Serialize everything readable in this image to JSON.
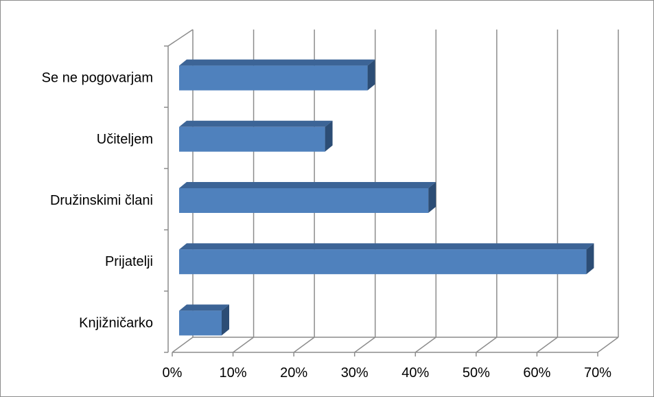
{
  "chart_data": {
    "type": "bar",
    "orientation": "horizontal",
    "style": "3d-clustered",
    "categories": [
      "Se ne pogovarjam",
      "Učiteljem",
      "Družinskimi člani",
      "Prijatelji",
      "Knjižničarko"
    ],
    "values": [
      0.31,
      0.24,
      0.41,
      0.67,
      0.07
    ],
    "x_ticks": [
      "0%",
      "10%",
      "20%",
      "30%",
      "40%",
      "50%",
      "60%",
      "70%"
    ],
    "xlim": [
      0,
      0.7
    ],
    "grid": true,
    "legend": "none",
    "colors": {
      "bar_front": "#4f81bd",
      "bar_top": "#3c6496",
      "bar_side": "#2c4d75",
      "grid": "#8c8c8c"
    }
  }
}
